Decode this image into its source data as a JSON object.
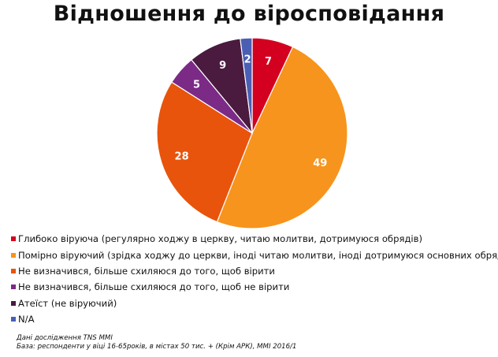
{
  "chart_data": {
    "type": "pie",
    "title": "Відношення до віросповідання",
    "categories": [
      "Глибоко віруюча (регулярно ходжу в церкву, читаю молитви, дотримуюся обрядів)",
      "Помірно віруючий (зрідка ходжу до церкви, іноді читаю молитви, іноді дотримуюся основних обрядів)",
      "Не визначився, більше схиляюся до того, щоб вірити",
      "Не визначився, більше схиляюся до того, щоб не вірити",
      "Атеїст (не віруючий)",
      "N/A"
    ],
    "values": [
      7,
      49,
      28,
      5,
      9,
      2
    ],
    "colors": [
      "#d4001f",
      "#f7941d",
      "#e8540c",
      "#7b2a86",
      "#4a1a3f",
      "#4a5fb4"
    ],
    "legend_position": "bottom-left"
  },
  "source": {
    "line1": "Дані дослідження TNS MMI",
    "line2": "База: респонденти у віці 16-65років, в містах 50 тис. + (Крім АРК), MMI 2016/1"
  }
}
